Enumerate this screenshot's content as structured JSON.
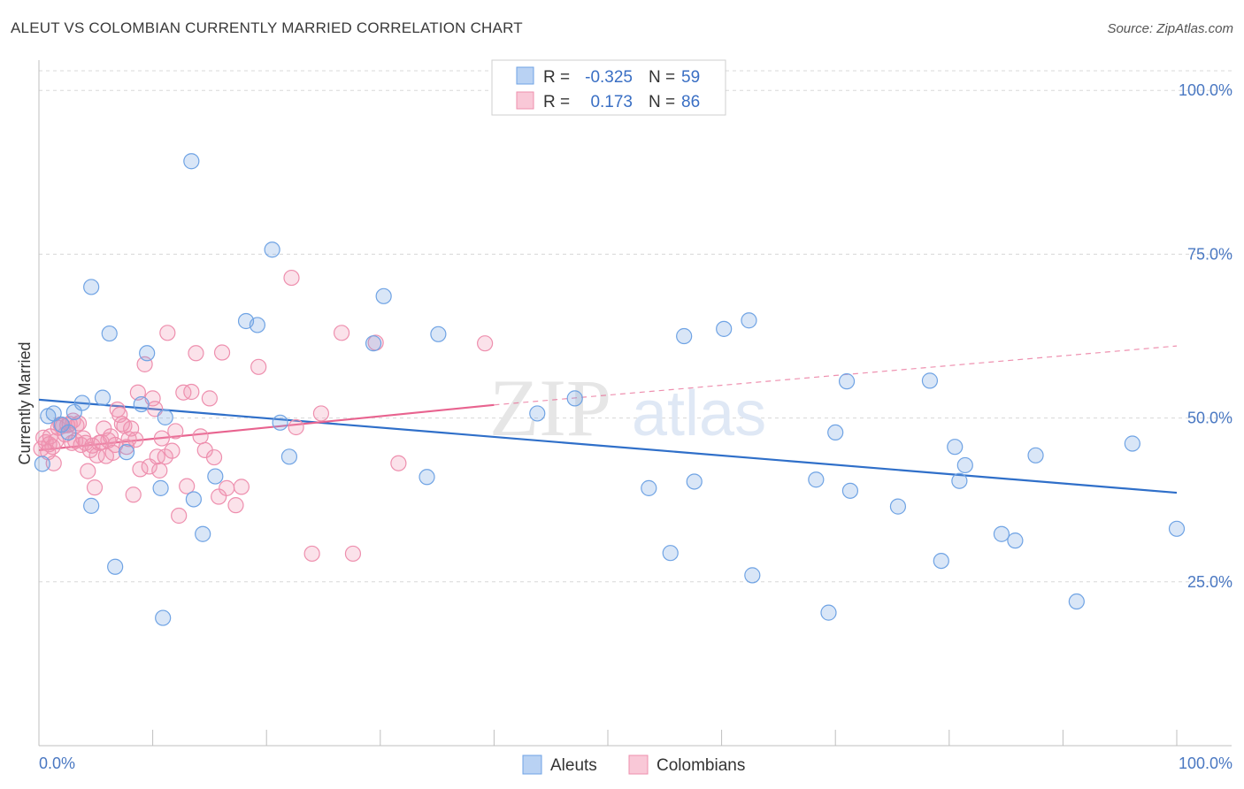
{
  "title": "ALEUT VS COLOMBIAN CURRENTLY MARRIED CORRELATION CHART",
  "source": "Source: ZipAtlas.com",
  "watermark": {
    "zip": "ZIP",
    "atlas": "atlas"
  },
  "colors": {
    "aleut": "#6fa3e4",
    "aleut_fill": "rgba(120,166,228,0.28)",
    "aleut_line": "#2f6fc9",
    "colombian": "#ee8fae",
    "colombian_fill": "rgba(240,150,180,0.28)",
    "colombian_line": "#e8638f",
    "grid": "#d8d8d8",
    "tick_text": "#4a78c2"
  },
  "legend": {
    "rows": [
      {
        "r_label": "R =",
        "r_value": "-0.325",
        "n_label": "N =",
        "n_value": "59"
      },
      {
        "r_label": "R =",
        "r_value": "0.173",
        "n_label": "N =",
        "n_value": "86"
      }
    ]
  },
  "chart_data": {
    "type": "scatter",
    "title": "ALEUT VS COLOMBIAN CURRENTLY MARRIED CORRELATION CHART",
    "xlabel": "",
    "ylabel": "Currently Married",
    "xlim": [
      0,
      100
    ],
    "ylim": [
      0,
      103
    ],
    "x_tick_labels": [
      "0.0%",
      "100.0%"
    ],
    "y_ticks": [
      25,
      50,
      75,
      100
    ],
    "y_tick_labels": [
      "25.0%",
      "50.0%",
      "75.0%",
      "100.0%"
    ],
    "grid": true,
    "legend_position": "top-center",
    "series": [
      {
        "name": "Aleuts",
        "r": -0.325,
        "n": 59,
        "trend": {
          "x": [
            0,
            100
          ],
          "y": [
            52.8,
            38.6
          ],
          "dashed": false
        },
        "points": [
          [
            0.3,
            43.0
          ],
          [
            0.8,
            50.3
          ],
          [
            1.3,
            50.7
          ],
          [
            2.0,
            49.0
          ],
          [
            2.6,
            47.8
          ],
          [
            3.1,
            50.9
          ],
          [
            3.8,
            52.3
          ],
          [
            4.6,
            36.6
          ],
          [
            4.6,
            70.0
          ],
          [
            5.6,
            53.1
          ],
          [
            6.2,
            62.9
          ],
          [
            6.7,
            27.3
          ],
          [
            7.7,
            44.8
          ],
          [
            9.0,
            52.1
          ],
          [
            9.5,
            59.9
          ],
          [
            10.7,
            39.3
          ],
          [
            10.9,
            19.5
          ],
          [
            11.1,
            50.1
          ],
          [
            13.4,
            89.2
          ],
          [
            13.6,
            37.6
          ],
          [
            14.4,
            32.3
          ],
          [
            15.5,
            41.1
          ],
          [
            18.2,
            64.8
          ],
          [
            19.2,
            64.2
          ],
          [
            20.5,
            75.7
          ],
          [
            21.2,
            49.3
          ],
          [
            22.0,
            44.1
          ],
          [
            29.4,
            61.4
          ],
          [
            30.3,
            68.6
          ],
          [
            34.1,
            41.0
          ],
          [
            35.1,
            62.8
          ],
          [
            43.8,
            50.7
          ],
          [
            47.1,
            53.0
          ],
          [
            53.6,
            39.3
          ],
          [
            55.5,
            29.4
          ],
          [
            56.7,
            62.5
          ],
          [
            57.6,
            40.3
          ],
          [
            60.2,
            63.6
          ],
          [
            62.4,
            64.9
          ],
          [
            62.7,
            26.0
          ],
          [
            68.3,
            40.6
          ],
          [
            69.4,
            20.3
          ],
          [
            70.0,
            47.8
          ],
          [
            71.0,
            55.6
          ],
          [
            71.3,
            38.9
          ],
          [
            75.5,
            36.5
          ],
          [
            78.3,
            55.7
          ],
          [
            79.3,
            28.2
          ],
          [
            80.5,
            45.6
          ],
          [
            80.9,
            40.4
          ],
          [
            81.4,
            42.8
          ],
          [
            84.6,
            32.3
          ],
          [
            85.8,
            31.3
          ],
          [
            87.6,
            44.3
          ],
          [
            91.2,
            22.0
          ],
          [
            96.1,
            46.1
          ],
          [
            100.0,
            33.1
          ]
        ]
      },
      {
        "name": "Colombians",
        "r": 0.173,
        "n": 86,
        "trend": {
          "x": [
            0,
            40,
            100
          ],
          "y": [
            45.1,
            52.0,
            61.0
          ],
          "dashed_after": 40
        },
        "points": [
          [
            0.2,
            45.3
          ],
          [
            0.4,
            47.0
          ],
          [
            0.6,
            46.3
          ],
          [
            0.8,
            44.8
          ],
          [
            0.9,
            46.0
          ],
          [
            1.0,
            47.2
          ],
          [
            1.2,
            45.6
          ],
          [
            1.3,
            43.1
          ],
          [
            1.5,
            46.5
          ],
          [
            1.7,
            48.5
          ],
          [
            1.9,
            49.0
          ],
          [
            2.1,
            48.8
          ],
          [
            2.3,
            47.5
          ],
          [
            2.5,
            48.9
          ],
          [
            2.7,
            49.1
          ],
          [
            2.9,
            46.2
          ],
          [
            3.0,
            49.6
          ],
          [
            3.2,
            46.5
          ],
          [
            3.3,
            48.9
          ],
          [
            3.5,
            49.2
          ],
          [
            3.7,
            45.9
          ],
          [
            3.9,
            46.9
          ],
          [
            4.1,
            46.2
          ],
          [
            4.3,
            41.9
          ],
          [
            4.5,
            45.1
          ],
          [
            4.7,
            45.8
          ],
          [
            4.9,
            39.4
          ],
          [
            5.1,
            44.3
          ],
          [
            5.3,
            46.2
          ],
          [
            5.5,
            46.3
          ],
          [
            5.7,
            48.4
          ],
          [
            5.9,
            44.2
          ],
          [
            6.1,
            46.6
          ],
          [
            6.3,
            47.2
          ],
          [
            6.5,
            44.7
          ],
          [
            6.7,
            45.9
          ],
          [
            6.9,
            51.3
          ],
          [
            7.1,
            50.5
          ],
          [
            7.3,
            49.1
          ],
          [
            7.5,
            48.8
          ],
          [
            7.7,
            45.6
          ],
          [
            7.9,
            46.8
          ],
          [
            8.1,
            48.4
          ],
          [
            8.3,
            38.3
          ],
          [
            8.5,
            46.7
          ],
          [
            8.7,
            53.9
          ],
          [
            8.9,
            42.2
          ],
          [
            9.3,
            58.2
          ],
          [
            9.7,
            42.6
          ],
          [
            10.0,
            53.0
          ],
          [
            10.2,
            51.4
          ],
          [
            10.4,
            44.1
          ],
          [
            10.6,
            42.0
          ],
          [
            10.8,
            46.9
          ],
          [
            11.1,
            44.1
          ],
          [
            11.3,
            63.0
          ],
          [
            11.7,
            45.0
          ],
          [
            12.0,
            48.0
          ],
          [
            12.3,
            35.1
          ],
          [
            12.7,
            53.9
          ],
          [
            13.0,
            39.6
          ],
          [
            13.4,
            54.0
          ],
          [
            13.8,
            59.9
          ],
          [
            14.2,
            47.2
          ],
          [
            14.6,
            45.1
          ],
          [
            15.0,
            53.0
          ],
          [
            15.4,
            44.0
          ],
          [
            15.8,
            38.0
          ],
          [
            16.1,
            60.0
          ],
          [
            16.5,
            39.3
          ],
          [
            17.3,
            36.7
          ],
          [
            17.8,
            39.5
          ],
          [
            19.3,
            57.8
          ],
          [
            22.2,
            71.4
          ],
          [
            22.6,
            48.6
          ],
          [
            24.0,
            29.3
          ],
          [
            24.8,
            50.7
          ],
          [
            26.6,
            63.0
          ],
          [
            27.6,
            29.3
          ],
          [
            29.6,
            61.5
          ],
          [
            31.6,
            43.1
          ],
          [
            39.2,
            61.4
          ]
        ]
      }
    ]
  }
}
